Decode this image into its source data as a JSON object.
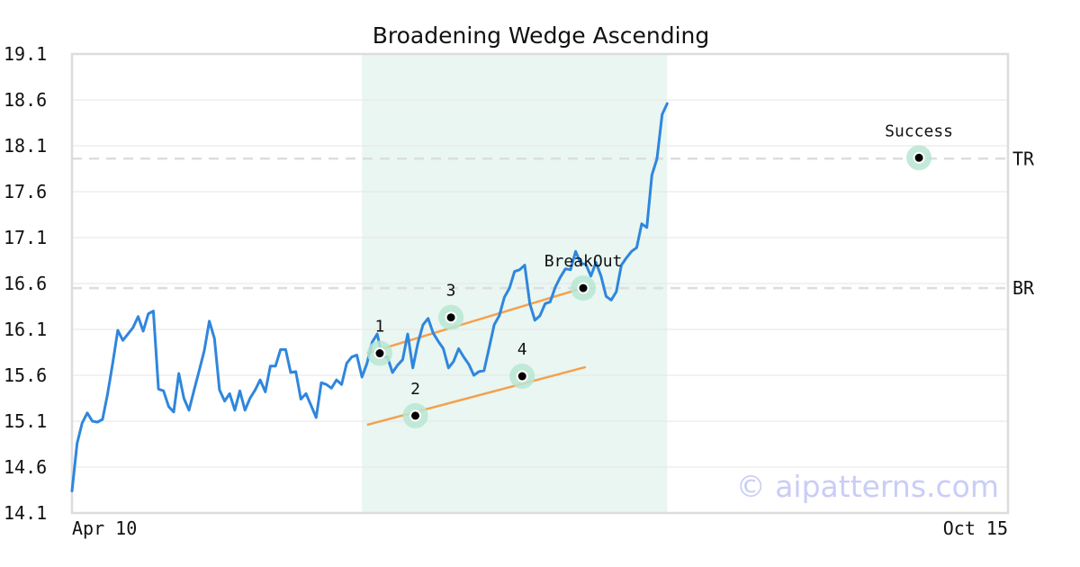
{
  "chart_data": {
    "type": "line",
    "title": "Broadening Wedge Ascending",
    "xlabel": "",
    "ylabel": "",
    "ylim": [
      14.1,
      19.1
    ],
    "yticks": [
      "19.1",
      "18.6",
      "18.1",
      "17.6",
      "17.1",
      "16.6",
      "16.1",
      "15.6",
      "15.1",
      "14.6",
      "14.1"
    ],
    "xticks": [
      "Apr 10",
      "Oct 15"
    ],
    "grid": "horizontal",
    "colors": {
      "line": "#2f86dd",
      "trend": "#f4a04d",
      "highlight": "#e9f6f1",
      "marker_glow": "#b8e6d2",
      "level": "#dddddd",
      "axis": "#dcdcdc"
    },
    "x_count": 185,
    "series": [
      {
        "points": [
          [
            0,
            14.34
          ],
          [
            1,
            14.86
          ],
          [
            2,
            15.08
          ],
          [
            3,
            15.19
          ],
          [
            4,
            15.1
          ],
          [
            5,
            15.09
          ],
          [
            6,
            15.12
          ],
          [
            7,
            15.4
          ],
          [
            8,
            15.73
          ],
          [
            9,
            16.09
          ],
          [
            10,
            15.98
          ],
          [
            11,
            16.05
          ],
          [
            12,
            16.12
          ],
          [
            13,
            16.24
          ],
          [
            14,
            16.08
          ],
          [
            15,
            16.27
          ],
          [
            16,
            16.3
          ],
          [
            17,
            15.45
          ],
          [
            18,
            15.43
          ],
          [
            19,
            15.26
          ],
          [
            20,
            15.2
          ],
          [
            21,
            15.62
          ],
          [
            22,
            15.35
          ],
          [
            23,
            15.22
          ],
          [
            24,
            15.44
          ],
          [
            25,
            15.65
          ],
          [
            26,
            15.87
          ],
          [
            27,
            16.19
          ],
          [
            28,
            16.0
          ],
          [
            29,
            15.44
          ],
          [
            30,
            15.32
          ],
          [
            31,
            15.4
          ],
          [
            32,
            15.22
          ],
          [
            33,
            15.43
          ],
          [
            34,
            15.22
          ],
          [
            35,
            15.35
          ],
          [
            36,
            15.44
          ],
          [
            37,
            15.55
          ],
          [
            38,
            15.42
          ],
          [
            39,
            15.7
          ],
          [
            40,
            15.7
          ],
          [
            41,
            15.88
          ],
          [
            42,
            15.88
          ],
          [
            43,
            15.63
          ],
          [
            44,
            15.64
          ],
          [
            45,
            15.34
          ],
          [
            46,
            15.4
          ],
          [
            47,
            15.27
          ],
          [
            48,
            15.14
          ],
          [
            49,
            15.52
          ],
          [
            50,
            15.5
          ],
          [
            51,
            15.46
          ],
          [
            52,
            15.55
          ],
          [
            53,
            15.5
          ],
          [
            54,
            15.73
          ],
          [
            55,
            15.8
          ],
          [
            56,
            15.82
          ],
          [
            57,
            15.58
          ],
          [
            58,
            15.73
          ],
          [
            59,
            15.96
          ],
          [
            60,
            16.05
          ],
          [
            61,
            15.8
          ],
          [
            62,
            15.8
          ],
          [
            63,
            15.63
          ],
          [
            64,
            15.71
          ],
          [
            65,
            15.77
          ],
          [
            66,
            16.05
          ],
          [
            67,
            15.68
          ],
          [
            68,
            15.95
          ],
          [
            69,
            16.15
          ],
          [
            70,
            16.22
          ],
          [
            71,
            16.06
          ],
          [
            72,
            15.97
          ],
          [
            73,
            15.89
          ],
          [
            74,
            15.68
          ],
          [
            75,
            15.75
          ],
          [
            76,
            15.89
          ],
          [
            77,
            15.8
          ],
          [
            78,
            15.72
          ],
          [
            79,
            15.6
          ],
          [
            80,
            15.64
          ],
          [
            81,
            15.65
          ],
          [
            82,
            15.9
          ],
          [
            83,
            16.15
          ],
          [
            84,
            16.25
          ],
          [
            85,
            16.45
          ],
          [
            86,
            16.55
          ],
          [
            87,
            16.73
          ],
          [
            88,
            16.75
          ],
          [
            89,
            16.8
          ],
          [
            90,
            16.38
          ],
          [
            91,
            16.2
          ],
          [
            92,
            16.25
          ],
          [
            93,
            16.38
          ],
          [
            94,
            16.4
          ],
          [
            95,
            16.56
          ],
          [
            96,
            16.67
          ],
          [
            97,
            16.76
          ],
          [
            98,
            16.75
          ],
          [
            99,
            16.95
          ],
          [
            100,
            16.82
          ],
          [
            101,
            16.81
          ],
          [
            102,
            16.68
          ],
          [
            103,
            16.83
          ],
          [
            104,
            16.68
          ],
          [
            105,
            16.46
          ],
          [
            106,
            16.42
          ],
          [
            107,
            16.51
          ],
          [
            108,
            16.8
          ],
          [
            109,
            16.88
          ],
          [
            110,
            16.95
          ],
          [
            111,
            16.99
          ],
          [
            112,
            17.25
          ],
          [
            113,
            17.21
          ],
          [
            114,
            17.78
          ],
          [
            115,
            17.96
          ],
          [
            116,
            18.44
          ],
          [
            117,
            18.56
          ]
        ]
      }
    ],
    "highlight_range": [
      57,
      117
    ],
    "trendlines": [
      {
        "from": [
          58,
          15.84
        ],
        "to": [
          101,
          16.56
        ]
      },
      {
        "from": [
          58,
          15.06
        ],
        "to": [
          101,
          15.69
        ]
      }
    ],
    "levels": [
      {
        "label": "TR",
        "y": 17.96
      },
      {
        "label": "BR",
        "y": 16.55
      }
    ],
    "markers": [
      {
        "label": "1",
        "x": 60.5,
        "y": 15.84,
        "label_pos": "above"
      },
      {
        "label": "2",
        "x": 67.5,
        "y": 15.16,
        "label_pos": "above"
      },
      {
        "label": "3",
        "x": 74.5,
        "y": 16.23,
        "label_pos": "above"
      },
      {
        "label": "4",
        "x": 88.5,
        "y": 15.59,
        "label_pos": "above"
      },
      {
        "label": "BreakOut",
        "x": 100.5,
        "y": 16.55,
        "label_pos": "above"
      },
      {
        "label": "Success",
        "x": 166.5,
        "y": 17.97,
        "label_pos": "above"
      }
    ],
    "watermark": "© aipatterns.com"
  }
}
